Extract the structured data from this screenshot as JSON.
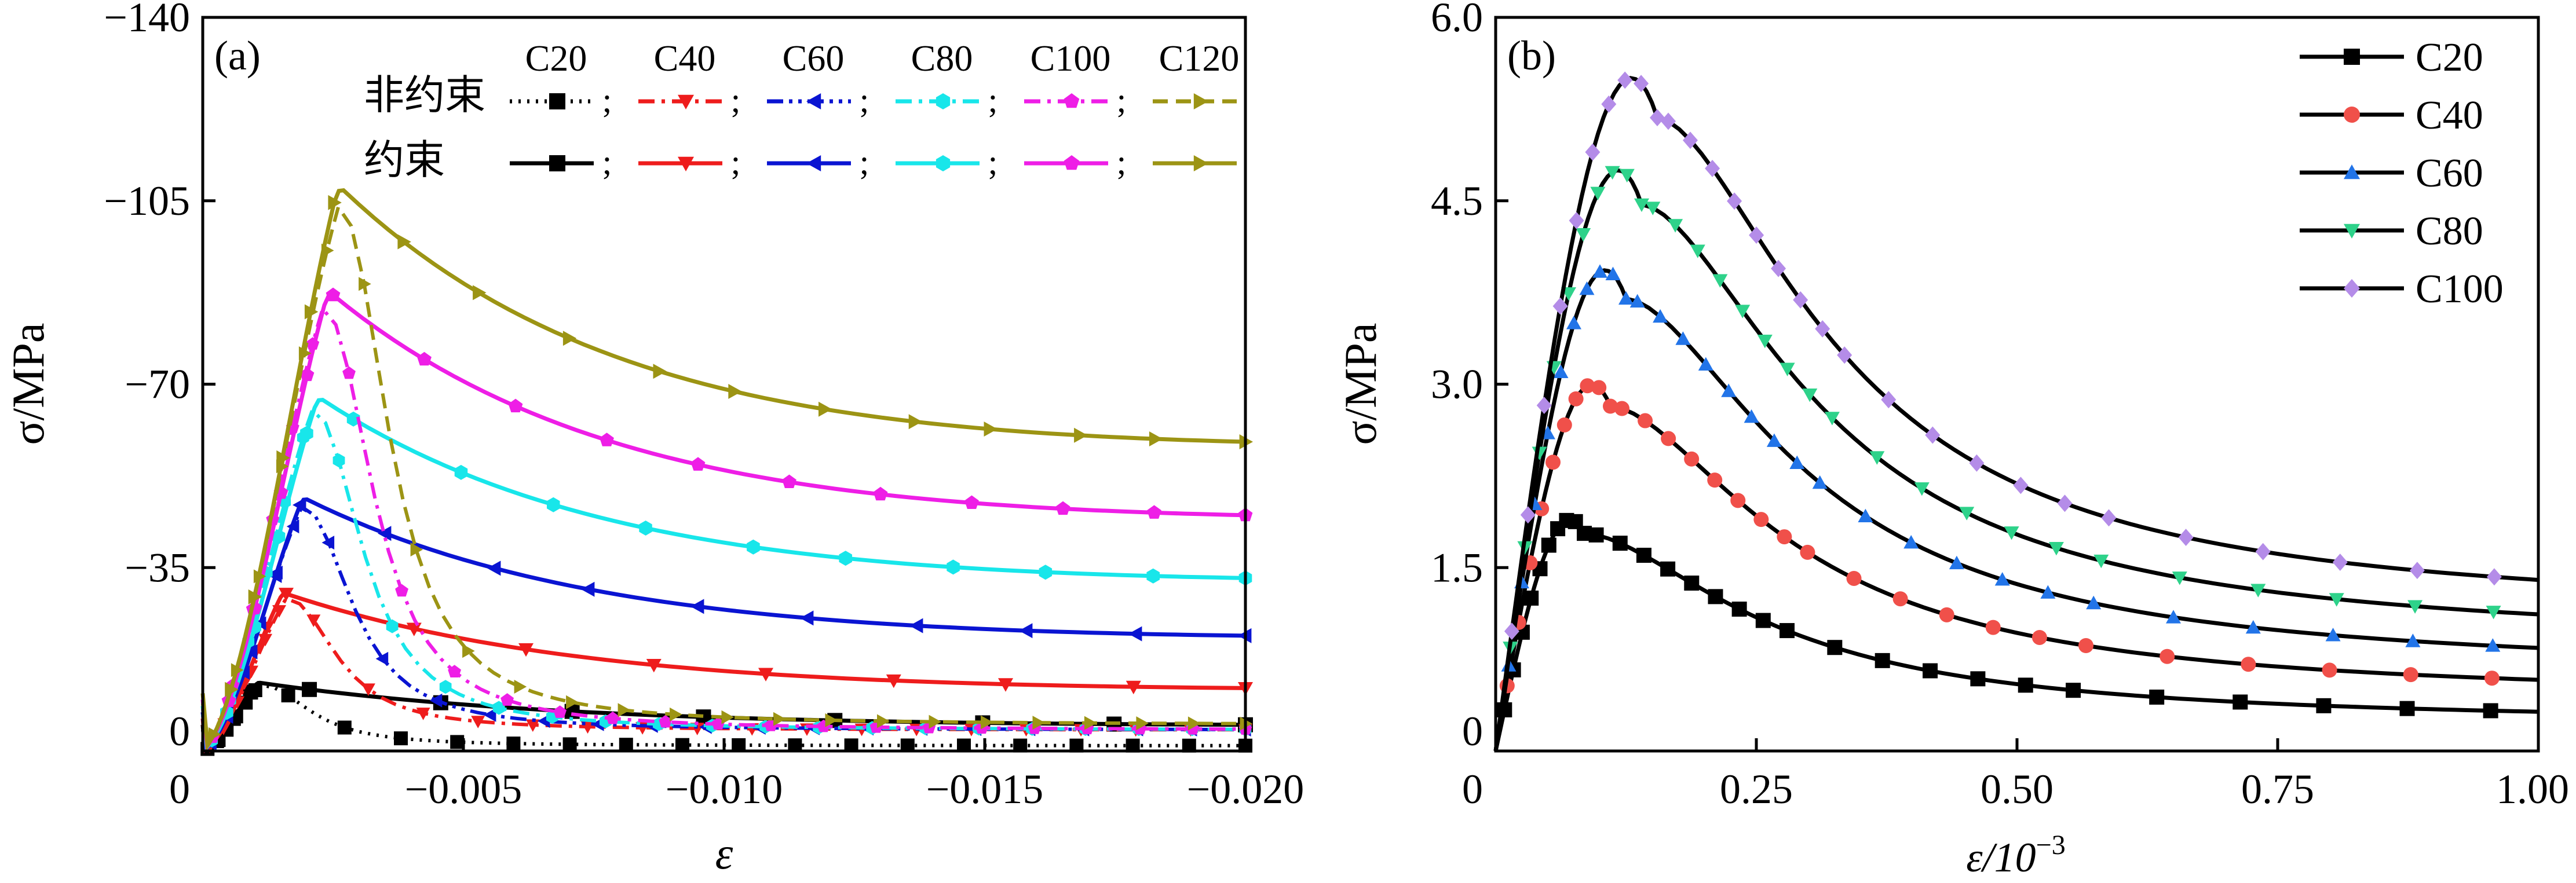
{
  "chart_data": [
    {
      "panel_label": "(a)",
      "type": "line",
      "xlabel": "ε",
      "ylabel": "σ/MPa",
      "xlim": [
        0,
        -0.02
      ],
      "ylim": [
        0,
        -140
      ],
      "xticks": [
        0,
        -0.005,
        -0.01,
        -0.015,
        -0.02
      ],
      "xtick_labels": [
        "0",
        "−0.005",
        "−0.010",
        "−0.015",
        "−0.020"
      ],
      "yticks": [
        0,
        -35,
        -70,
        -105,
        -140
      ],
      "ytick_labels": [
        "0",
        "−35",
        "−70",
        "−105",
        "−140"
      ],
      "legend": {
        "grades": [
          "C20",
          "C40",
          "C60",
          "C80",
          "C100",
          "C120"
        ],
        "unconfined_label": "非约束",
        "confined_label": "约束",
        "separator": ";"
      },
      "grades": [
        {
          "name": "C20",
          "color": "#000000",
          "marker": "square",
          "unconf_style": "dotted",
          "peak_eps": -0.0011,
          "peak_sigma": -13,
          "conf_end_sigma": -5,
          "unconf_end_sigma": -1
        },
        {
          "name": "C40",
          "color": "#ee1c1c",
          "marker": "triangle-down",
          "unconf_style": "dashdot",
          "peak_eps": -0.0016,
          "peak_sigma": -30,
          "conf_end_sigma": -12,
          "unconf_end_sigma": -4
        },
        {
          "name": "C60",
          "color": "#0a14d2",
          "marker": "triangle-left",
          "unconf_style": "dashdotdot",
          "peak_eps": -0.002,
          "peak_sigma": -48,
          "conf_end_sigma": -22,
          "unconf_end_sigma": -4
        },
        {
          "name": "C80",
          "color": "#18e6ea",
          "marker": "hexagon",
          "unconf_style": "dashdot",
          "peak_eps": -0.0023,
          "peak_sigma": -67,
          "conf_end_sigma": -33,
          "unconf_end_sigma": -4
        },
        {
          "name": "C100",
          "color": "#ee1ee6",
          "marker": "pentagon",
          "unconf_style": "dashdot",
          "peak_eps": -0.0025,
          "peak_sigma": -87,
          "conf_end_sigma": -45,
          "unconf_end_sigma": -4
        },
        {
          "name": "C120",
          "color": "#9c9414",
          "marker": "triangle-right",
          "unconf_style": "dashed",
          "peak_eps": -0.0027,
          "peak_sigma": -107,
          "conf_end_sigma": -59,
          "unconf_end_sigma": -5
        }
      ]
    },
    {
      "panel_label": "(b)",
      "type": "line",
      "xlabel": "ε/10",
      "xlabel_sup": "−3",
      "ylabel": "σ/MPa",
      "xlim": [
        0,
        1.0
      ],
      "ylim": [
        0,
        6.0
      ],
      "xticks": [
        0,
        0.25,
        0.5,
        0.75,
        1.0
      ],
      "xtick_labels": [
        "0",
        "0.25",
        "0.50",
        "0.75",
        "1.00"
      ],
      "yticks": [
        0,
        1.5,
        3.0,
        4.5,
        6.0
      ],
      "ytick_labels": [
        "0",
        "1.5",
        "3.0",
        "4.5",
        "6.0"
      ],
      "legend_position": "top-right",
      "series": [
        {
          "name": "C20",
          "marker_color": "#000000",
          "marker": "square",
          "peak_eps": 0.085,
          "peak_sigma": 1.78,
          "end_sigma": 0.22
        },
        {
          "name": "C40",
          "marker_color": "#f0504a",
          "marker": "circle",
          "peak_eps": 0.11,
          "peak_sigma": 2.82,
          "end_sigma": 0.42
        },
        {
          "name": "C60",
          "marker_color": "#2274e8",
          "marker": "triangle-up",
          "peak_eps": 0.125,
          "peak_sigma": 3.7,
          "end_sigma": 0.63
        },
        {
          "name": "C80",
          "marker_color": "#2ed28a",
          "marker": "triangle-down",
          "peak_eps": 0.14,
          "peak_sigma": 4.47,
          "end_sigma": 0.86
        },
        {
          "name": "C100",
          "marker_color": "#b48ce8",
          "marker": "diamond",
          "peak_eps": 0.155,
          "peak_sigma": 5.18,
          "end_sigma": 1.1
        }
      ]
    }
  ]
}
